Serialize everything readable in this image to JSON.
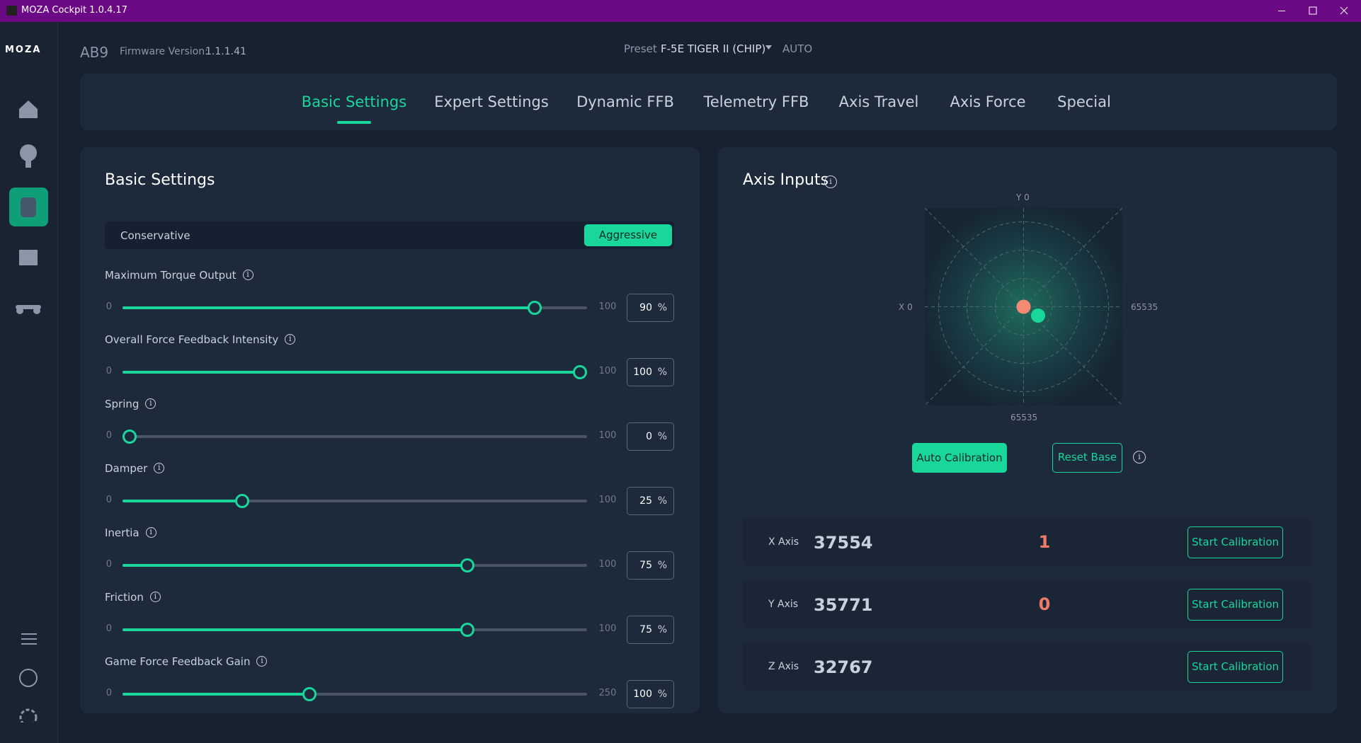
{
  "window": {
    "title": "MOZA Cockpit 1.0.4.17"
  },
  "sidebar": {
    "logo": "MOZA"
  },
  "header": {
    "device": "AB9",
    "firmware_label": "Firmware Version:",
    "firmware_value": "1.1.1.41",
    "preset_label": "Preset",
    "preset_value": "F-5E TIGER II (CHIP)",
    "mode": "AUTO"
  },
  "tabs": [
    "Basic Settings",
    "Expert Settings",
    "Dynamic FFB",
    "Telemetry FFB",
    "Axis Travel",
    "Axis Force",
    "Special"
  ],
  "basic": {
    "title": "Basic Settings",
    "modes": [
      "Conservative",
      "Aggressive"
    ],
    "sliders": [
      {
        "label": "Maximum Torque Output",
        "min": 0,
        "max": 100,
        "value": 90,
        "unit": "%"
      },
      {
        "label": "Overall Force Feedback Intensity",
        "min": 0,
        "max": 100,
        "value": 100,
        "unit": "%"
      },
      {
        "label": "Spring",
        "min": 0,
        "max": 100,
        "value": 0,
        "unit": "%"
      },
      {
        "label": "Damper",
        "min": 0,
        "max": 100,
        "value": 25,
        "unit": "%"
      },
      {
        "label": "Inertia",
        "min": 0,
        "max": 100,
        "value": 75,
        "unit": "%"
      },
      {
        "label": "Friction",
        "min": 0,
        "max": 100,
        "value": 75,
        "unit": "%"
      },
      {
        "label": "Game Force Feedback Gain",
        "min": 0,
        "max": 250,
        "value": 100,
        "unit": "%"
      }
    ]
  },
  "axis_inputs": {
    "title": "Axis Inputs",
    "plot": {
      "x_label": "X",
      "x_min": 0,
      "x_max": 65535,
      "y_label": "Y",
      "y_min": 0,
      "y_max": 65535
    },
    "buttons": [
      "Auto Calibration",
      "Reset Base"
    ],
    "axes": [
      {
        "name": "X Axis",
        "value": 37554,
        "delta": 1,
        "button": "Start Calibration"
      },
      {
        "name": "Y Axis",
        "value": 35771,
        "delta": 0,
        "button": "Start Calibration"
      },
      {
        "name": "Z Axis",
        "value": 32767,
        "button": "Start Calibration"
      }
    ]
  }
}
